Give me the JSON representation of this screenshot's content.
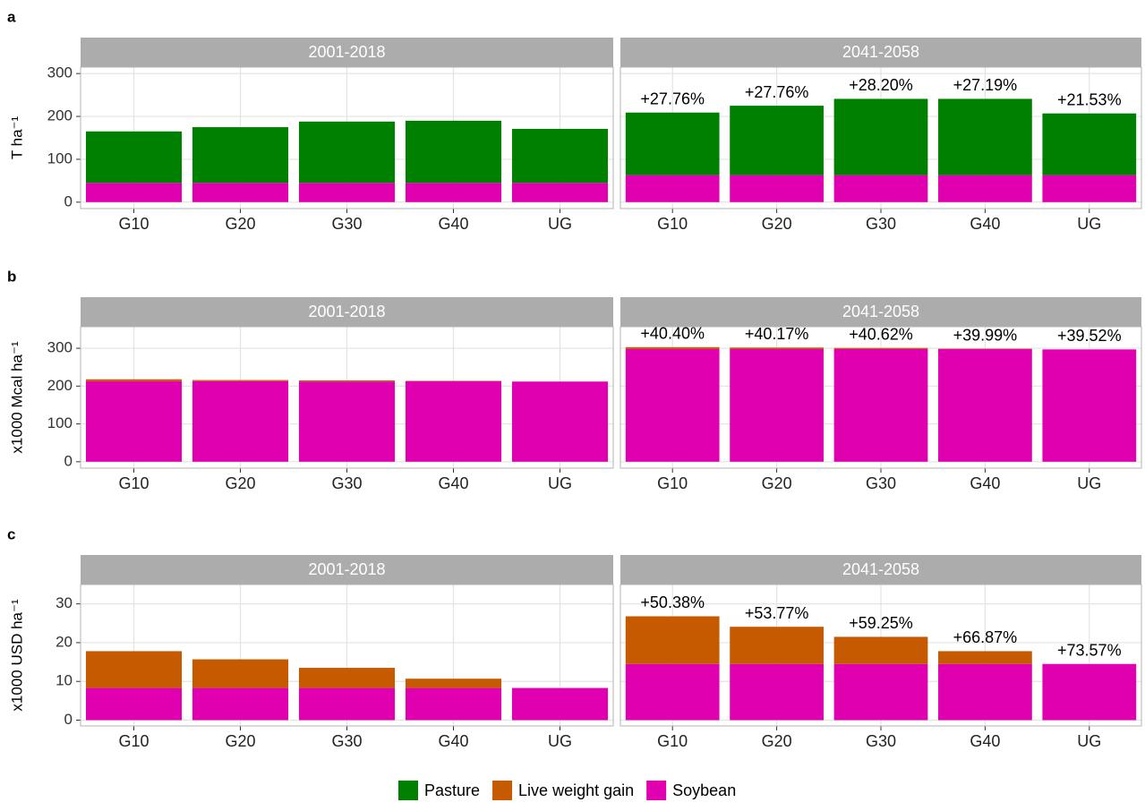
{
  "chart_data": [
    {
      "type": "bar",
      "stacked": true,
      "label": "a",
      "ylabel": "T ha⁻¹",
      "ylim": [
        -15,
        315
      ],
      "yticks": [
        0,
        100,
        200,
        300
      ],
      "grid": true,
      "categories": [
        "G10",
        "G20",
        "G30",
        "G40",
        "UG"
      ],
      "facets": [
        {
          "title": "2001-2018",
          "series": [
            {
              "name": "Soybean",
              "color": "#e000b0",
              "values": [
                45,
                45,
                45,
                45,
                45
              ]
            },
            {
              "name": "Live weight gain",
              "color": "#c55a00",
              "values": [
                0,
                0,
                0,
                0,
                0
              ]
            },
            {
              "name": "Pasture",
              "color": "#008000",
              "values": [
                120,
                130,
                143,
                145,
                126
              ]
            }
          ]
        },
        {
          "title": "2041-2058",
          "annotations": [
            "+27.76%",
            "+27.76%",
            "+28.20%",
            "+27.19%",
            "+21.53%"
          ],
          "series": [
            {
              "name": "Soybean",
              "color": "#e000b0",
              "values": [
                63,
                63,
                63,
                63,
                63
              ]
            },
            {
              "name": "Live weight gain",
              "color": "#c55a00",
              "values": [
                0,
                0,
                0,
                0,
                0
              ]
            },
            {
              "name": "Pasture",
              "color": "#008000",
              "values": [
                146,
                162,
                178,
                178,
                144
              ]
            }
          ]
        }
      ]
    },
    {
      "type": "bar",
      "stacked": true,
      "label": "b",
      "ylabel": "x1000 Mcal ha⁻¹",
      "ylim": [
        -17,
        357
      ],
      "yticks": [
        0,
        100,
        200,
        300
      ],
      "grid": true,
      "categories": [
        "G10",
        "G20",
        "G30",
        "G40",
        "UG"
      ],
      "facets": [
        {
          "title": "2001-2018",
          "series": [
            {
              "name": "Soybean",
              "color": "#e000b0",
              "values": [
                213,
                213,
                212,
                213,
                212
              ]
            },
            {
              "name": "Live weight gain",
              "color": "#c55a00",
              "values": [
                5,
                3,
                3,
                1,
                0
              ]
            },
            {
              "name": "Pasture",
              "color": "#008000",
              "values": [
                0,
                0,
                0,
                0,
                0
              ]
            }
          ]
        },
        {
          "title": "2041-2058",
          "annotations": [
            "+40.40%",
            "+40.17%",
            "+40.62%",
            "+39.99%",
            "+39.52%"
          ],
          "series": [
            {
              "name": "Soybean",
              "color": "#e000b0",
              "values": [
                298,
                298,
                298,
                298,
                297
              ]
            },
            {
              "name": "Live weight gain",
              "color": "#c55a00",
              "values": [
                5,
                4,
                3,
                1,
                0
              ]
            },
            {
              "name": "Pasture",
              "color": "#008000",
              "values": [
                0,
                0,
                0,
                0,
                0
              ]
            }
          ]
        }
      ]
    },
    {
      "type": "bar",
      "stacked": true,
      "label": "c",
      "ylabel": "x1000 USD ha⁻¹",
      "ylim": [
        -1.5,
        35
      ],
      "yticks": [
        0,
        10,
        20,
        30
      ],
      "grid": true,
      "categories": [
        "G10",
        "G20",
        "G30",
        "G40",
        "UG"
      ],
      "facets": [
        {
          "title": "2001-2018",
          "series": [
            {
              "name": "Soybean",
              "color": "#e000b0",
              "values": [
                8.3,
                8.3,
                8.3,
                8.3,
                8.3
              ]
            },
            {
              "name": "Live weight gain",
              "color": "#c55a00",
              "values": [
                9.5,
                7.4,
                5.2,
                2.4,
                0
              ]
            },
            {
              "name": "Pasture",
              "color": "#008000",
              "values": [
                0,
                0,
                0,
                0,
                0
              ]
            }
          ]
        },
        {
          "title": "2041-2058",
          "annotations": [
            "+50.38%",
            "+53.77%",
            "+59.25%",
            "+66.87%",
            "+73.57%"
          ],
          "series": [
            {
              "name": "Soybean",
              "color": "#e000b0",
              "values": [
                14.5,
                14.5,
                14.5,
                14.5,
                14.5
              ]
            },
            {
              "name": "Live weight gain",
              "color": "#c55a00",
              "values": [
                12.3,
                9.6,
                7.0,
                3.3,
                0
              ]
            },
            {
              "name": "Pasture",
              "color": "#008000",
              "values": [
                0,
                0,
                0,
                0,
                0
              ]
            }
          ]
        }
      ]
    }
  ]
}
